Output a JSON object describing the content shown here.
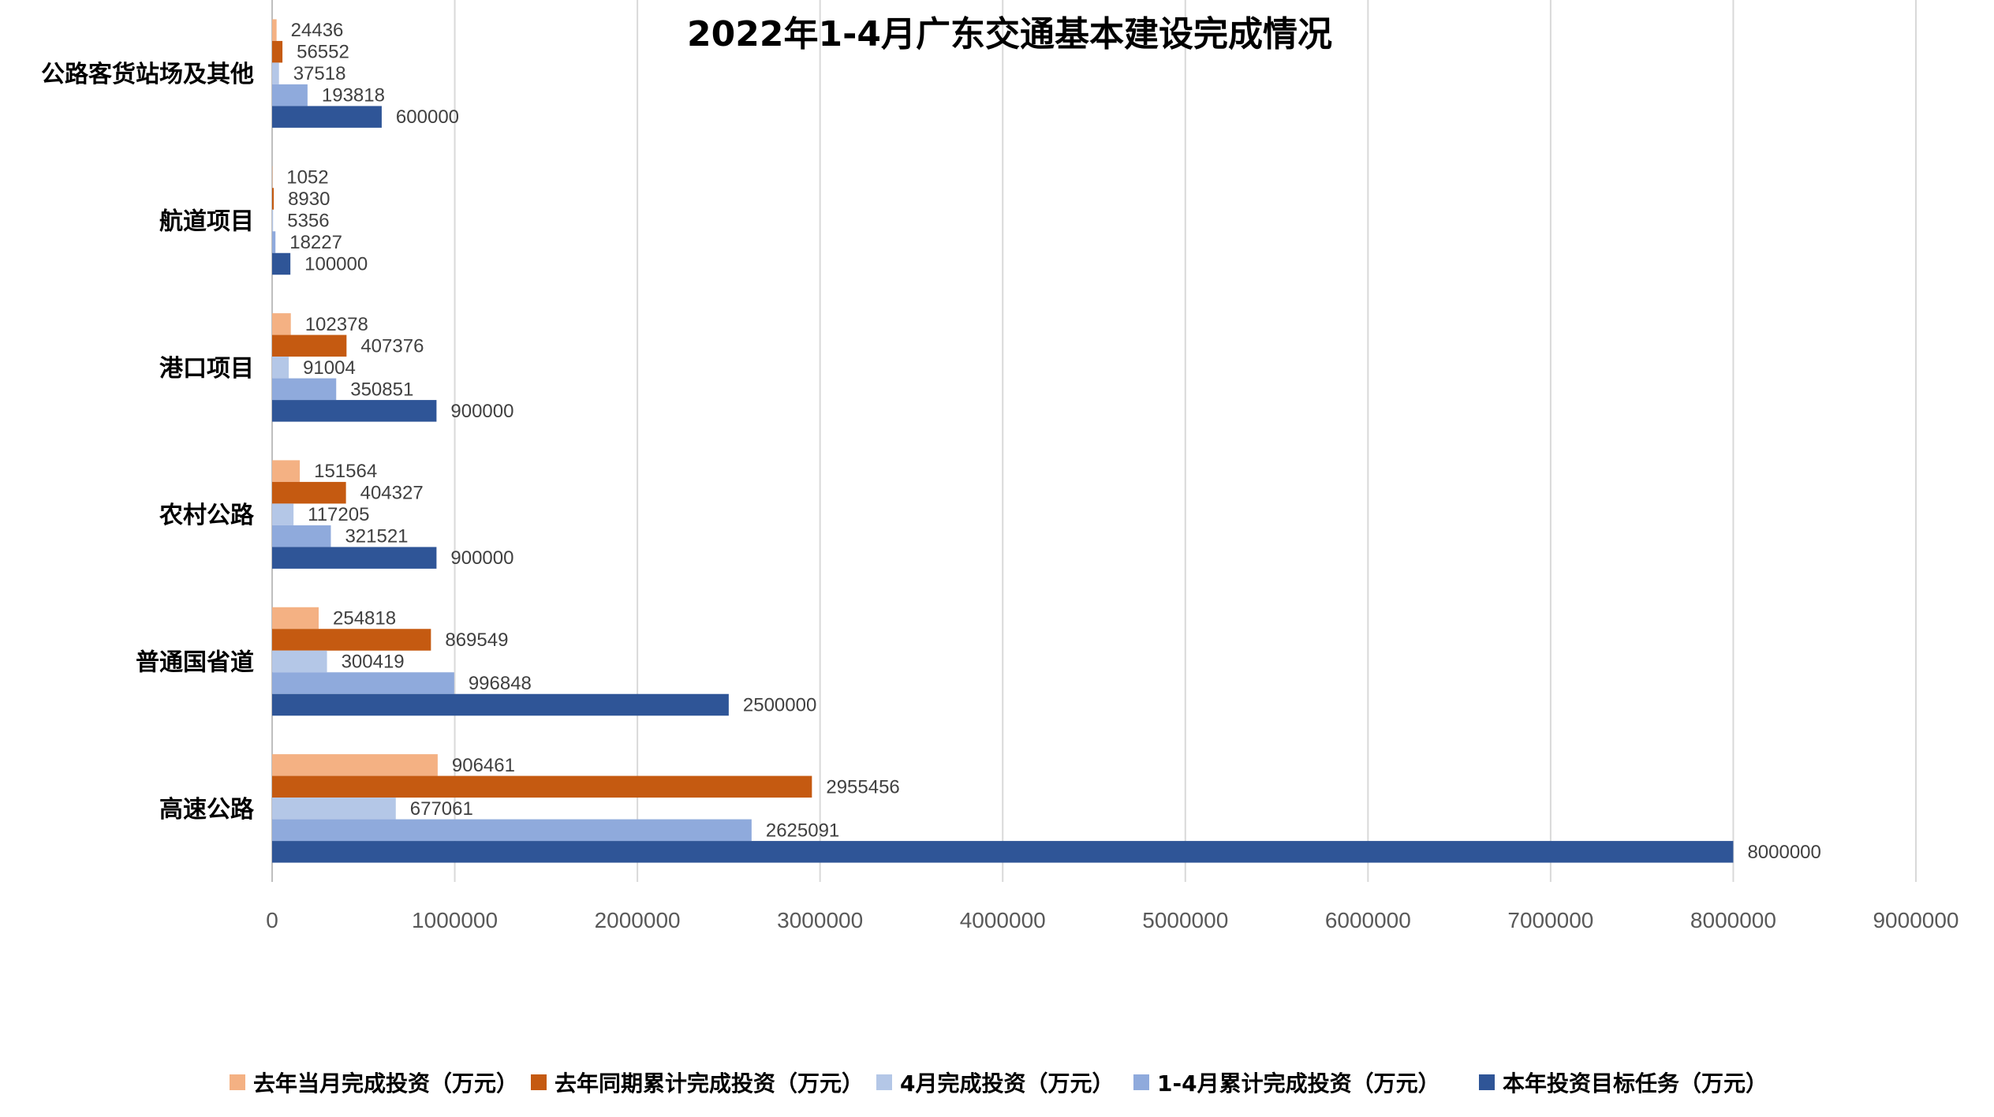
{
  "chart_data": {
    "type": "bar",
    "orientation": "horizontal",
    "title": "2022年1-4月广东交通基本建设完成情况",
    "categories": [
      "公路客货站场及其他",
      "航道项目",
      "港口项目",
      "农村公路",
      "普通国省道",
      "高速公路"
    ],
    "series": [
      {
        "name": "去年当月完成投资（万元）",
        "color": "#F4B183",
        "values": [
          24436,
          1052,
          102378,
          151564,
          254818,
          906461
        ]
      },
      {
        "name": "去年同期累计完成投资（万元）",
        "color": "#C55A11",
        "values": [
          56552,
          8930,
          407376,
          404327,
          869549,
          2955456
        ]
      },
      {
        "name": "4月完成投资（万元）",
        "color": "#B4C7E7",
        "values": [
          37518,
          5356,
          91004,
          117205,
          300419,
          677061
        ]
      },
      {
        "name": "1-4月累计完成投资（万元）",
        "color": "#8FAADC",
        "values": [
          193818,
          18227,
          350851,
          321521,
          996848,
          2625091
        ]
      },
      {
        "name": "本年投资目标任务（万元）",
        "color": "#2F5597",
        "values": [
          600000,
          100000,
          900000,
          900000,
          2500000,
          8000000
        ]
      }
    ],
    "xlim": [
      0,
      9000000
    ],
    "xticks": [
      "0",
      "1000000",
      "2000000",
      "3000000",
      "4000000",
      "5000000",
      "6000000",
      "7000000",
      "8000000",
      "9000000"
    ],
    "xlabel": "",
    "ylabel": "",
    "grid": true,
    "legend_position": "bottom"
  }
}
